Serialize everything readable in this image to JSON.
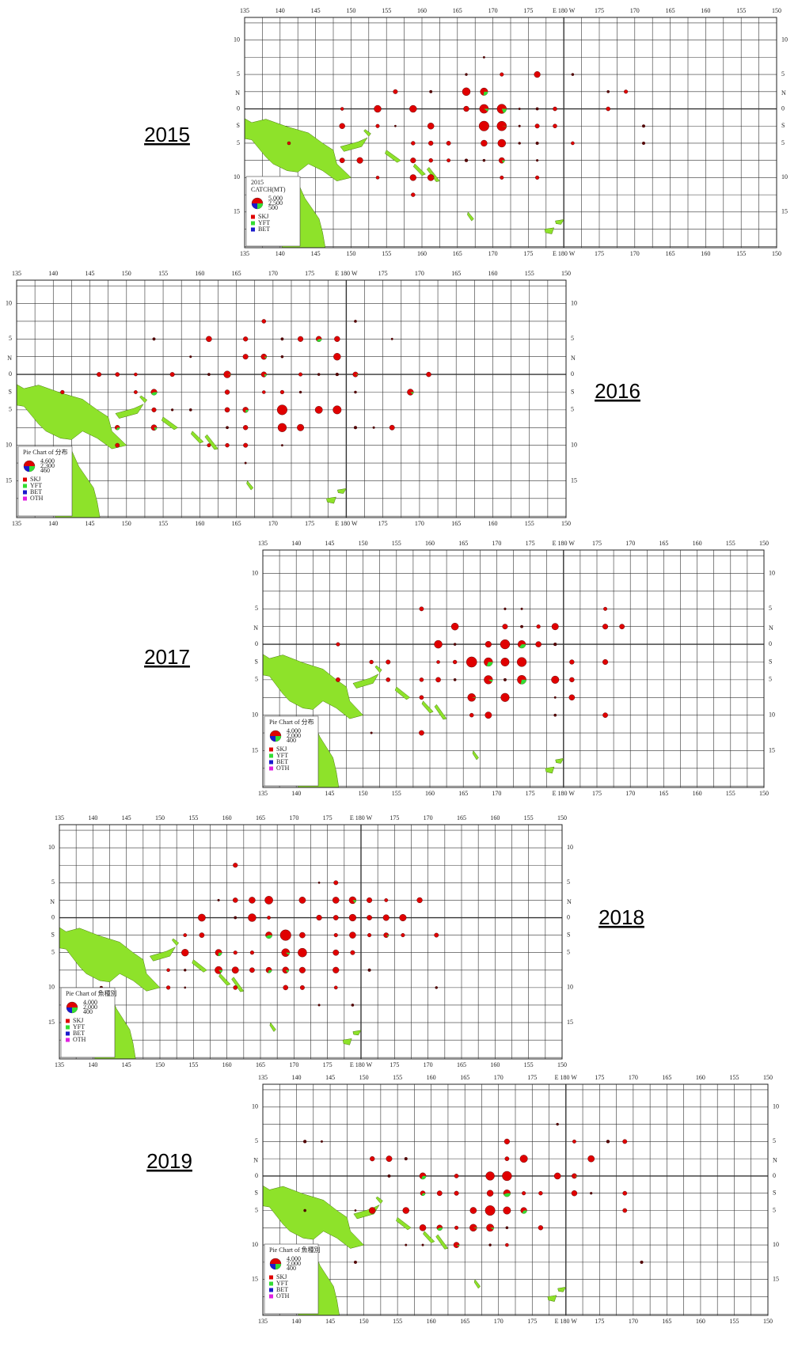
{
  "panels": [
    {
      "year": "2015",
      "lon_labels": [
        "135",
        "140",
        "145",
        "150",
        "155",
        "160",
        "165",
        "170",
        "175",
        "E 180 W",
        "175",
        "170",
        "165",
        "160",
        "155",
        "150"
      ],
      "lat_labels": [
        "10",
        "5",
        "N",
        "0",
        "S",
        "5",
        "10",
        "15"
      ],
      "legend": {
        "title": [
          "2015",
          "CATCH(MT)"
        ],
        "scale": [
          "5,000",
          "2,500",
          "500"
        ],
        "species": [
          "SKJ",
          "YFT",
          "BET"
        ]
      }
    },
    {
      "year": "2016",
      "lon_labels": [
        "135",
        "140",
        "145",
        "150",
        "155",
        "160",
        "165",
        "170",
        "175",
        "E 180 W",
        "175",
        "170",
        "165",
        "160",
        "155",
        "150"
      ],
      "lat_labels": [
        "10",
        "5",
        "N",
        "0",
        "S",
        "5",
        "10",
        "15"
      ],
      "legend": {
        "title": [
          "Pie Chart of 分布"
        ],
        "scale": [
          "4,600",
          "2,300",
          "460"
        ],
        "species": [
          "SKJ",
          "YFT",
          "BET",
          "OTH"
        ]
      }
    },
    {
      "year": "2017",
      "lon_labels": [
        "135",
        "140",
        "145",
        "150",
        "155",
        "160",
        "165",
        "170",
        "175",
        "E 180 W",
        "175",
        "170",
        "165",
        "160",
        "155",
        "150"
      ],
      "lat_labels": [
        "10",
        "5",
        "N",
        "0",
        "S",
        "5",
        "10",
        "15"
      ],
      "legend": {
        "title": [
          "Pie Chart of 分布"
        ],
        "scale": [
          "4,000",
          "2,000",
          "400"
        ],
        "species": [
          "SKJ",
          "YFT",
          "BET",
          "OTH"
        ]
      }
    },
    {
      "year": "2018",
      "lon_labels": [
        "135",
        "140",
        "145",
        "150",
        "155",
        "160",
        "165",
        "170",
        "175",
        "E 180 W",
        "175",
        "170",
        "165",
        "160",
        "155",
        "150"
      ],
      "lat_labels": [
        "10",
        "5",
        "N",
        "0",
        "S",
        "5",
        "10",
        "15"
      ],
      "legend": {
        "title": [
          "Pie Chart of 魚種別"
        ],
        "scale": [
          "4,000",
          "2,000",
          "400"
        ],
        "species": [
          "SKJ",
          "YFT",
          "BET",
          "OTH"
        ]
      }
    },
    {
      "year": "2019",
      "lon_labels": [
        "135",
        "140",
        "145",
        "150",
        "155",
        "160",
        "165",
        "170",
        "175",
        "E 180 W",
        "175",
        "170",
        "165",
        "160",
        "155",
        "150"
      ],
      "lat_labels": [
        "10",
        "5",
        "N",
        "0",
        "S",
        "5",
        "10",
        "15"
      ],
      "legend": {
        "title": [
          "Pie Chart of 魚種別"
        ],
        "scale": [
          "4,000",
          "2,000",
          "400"
        ],
        "species": [
          "SKJ",
          "YFT",
          "BET",
          "OTH"
        ]
      }
    }
  ]
}
